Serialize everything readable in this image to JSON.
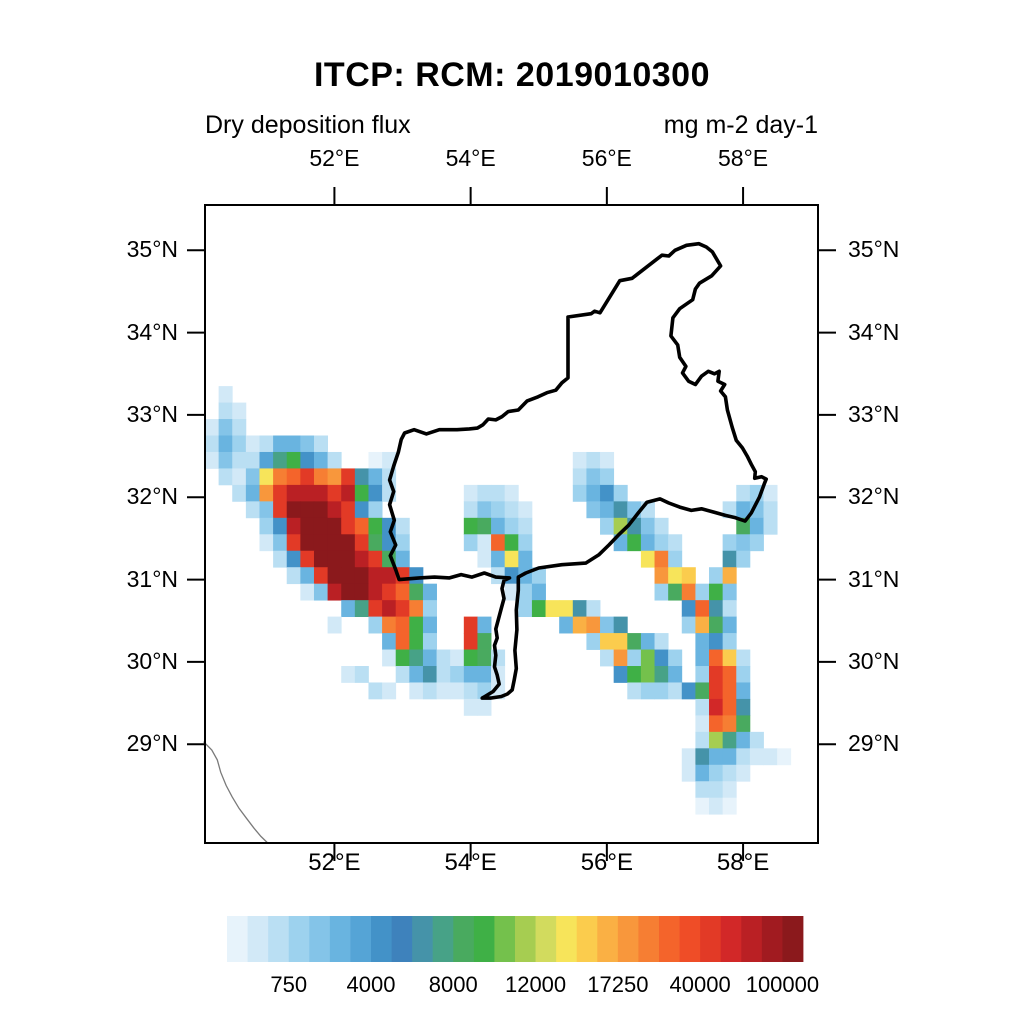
{
  "title": "ITCP: RCM: 2019010300",
  "subtitle_left": "Dry deposition flux",
  "subtitle_right": "mg m-2 day-1",
  "chart_data": {
    "type": "heatmap",
    "title": "ITCP: RCM: 2019010300",
    "variable": "Dry deposition flux",
    "units": "mg m-2 day-1",
    "map_region": "lat-lon grid with political boundary overlay",
    "lon_range": [
      50.1,
      59.1
    ],
    "lat_range": [
      27.8,
      35.55
    ],
    "x_ticks": {
      "values": [
        52,
        54,
        56,
        58
      ],
      "labels": [
        "52°E",
        "54°E",
        "56°E",
        "58°E"
      ]
    },
    "y_ticks": {
      "values": [
        35,
        34,
        33,
        32,
        31,
        30,
        29
      ],
      "labels": [
        "35°N",
        "34°N",
        "33°N",
        "32°N",
        "31°N",
        "30°N",
        "29°N"
      ]
    },
    "grid": "off",
    "legend_position": "horizontal labelbar below plot",
    "colorbar": {
      "n_segments": 28,
      "colors": [
        "#E7F3FB",
        "#D2E9F7",
        "#BADFF3",
        "#9DD2EE",
        "#84C4E8",
        "#69B4E0",
        "#55A4D6",
        "#4392C8",
        "#3E82BC",
        "#4593A9",
        "#47A287",
        "#49AA5F",
        "#3FB046",
        "#74C14C",
        "#A6CD51",
        "#D2DB5E",
        "#F7E45A",
        "#FBCC4D",
        "#FAB044",
        "#F8973C",
        "#F67E33",
        "#F4642B",
        "#EF4D27",
        "#E23A26",
        "#D22828",
        "#BA2024",
        "#A11B20",
        "#8B191C"
      ],
      "labels": [
        "750",
        "4000",
        "8000",
        "12000",
        "17250",
        "40000",
        "100000"
      ],
      "label_boundary_indices": [
        3,
        7,
        11,
        15,
        19,
        23,
        27
      ]
    },
    "raster": {
      "description": "dry deposition flux cells; each character is one 0.2 deg x 0.2 deg cell; letters index the 28 colorbar segments via palette_letters; dot = no deposition",
      "cell_size_deg": 0.2,
      "origin_lon": 50.1,
      "origin_lat": 35.55,
      "row_start": 11,
      "cols": 45,
      "rows": [
        ".b...........................................",
        ".cb..........................................",
        "bec..........................................",
        "cfdbcffec....................................",
        "beccgkmhfc..ab.............bcb...............",
        ".cbequvxutxjfc.............ced...............",
        "..cftxzzzxzmhc.....bccb....dfhd........cdb...",
        "...cexZZZzxhd......cedcb....efjec.....cfec...",
        "....dhzZZZxvmhc....mlfdc.....dojec.....lfc...",
        "....bexZZZZxlhd....dbvmd......fmfdc...ded....",
        ".....chxZZZzxlf.....bfqf........qud...jd.....",
        "......cfxZZZzzxh.....chfd........tqr.ds......",
        ".......bezZZzxvlf.....bdf........dludme......",
        "..........fkxzxud......dmqqjc......hvjc......",
        ".........b..duvmf..xf.....fstej....dslf......",
        ".............fvmd..xl.......drrlfc..fhd......",
        ".............bmkfcbmlc.......ctdnhd.fvrc.....",
        "..........bc..cfjcdffb........hmnkf.dxvd.....",
        "............cb.bcbbcdb.........cddchlxvf.....",
        "...................bb...............cyvj.....",
        "....................................bvul.....",
        "....................................cokfc....",
        "...................................bjffcbba..",
        "...................................bfdcb.....",
        "....................................ccb......",
        "....................................aba......"
      ]
    },
    "palette_letters": "abcdefghijklmnopqrstuvwxyzXZ",
    "region_outline_lonlat": [
      [
        55.43,
        34.19
      ],
      [
        55.77,
        34.23
      ],
      [
        55.82,
        34.26
      ],
      [
        55.9,
        34.24
      ],
      [
        56.19,
        34.63
      ],
      [
        56.37,
        34.66
      ],
      [
        56.73,
        34.89
      ],
      [
        56.81,
        34.94
      ],
      [
        56.91,
        34.93
      ],
      [
        57.0,
        35.0
      ],
      [
        57.17,
        35.06
      ],
      [
        57.35,
        35.08
      ],
      [
        57.46,
        35.04
      ],
      [
        57.55,
        34.98
      ],
      [
        57.67,
        34.81
      ],
      [
        57.54,
        34.69
      ],
      [
        57.36,
        34.6
      ],
      [
        57.3,
        34.53
      ],
      [
        57.26,
        34.4
      ],
      [
        57.07,
        34.29
      ],
      [
        56.97,
        34.18
      ],
      [
        56.94,
        33.96
      ],
      [
        57.04,
        33.85
      ],
      [
        57.07,
        33.7
      ],
      [
        57.16,
        33.59
      ],
      [
        57.11,
        33.51
      ],
      [
        57.2,
        33.41
      ],
      [
        57.3,
        33.37
      ],
      [
        57.39,
        33.47
      ],
      [
        57.49,
        33.53
      ],
      [
        57.58,
        33.5
      ],
      [
        57.65,
        33.53
      ],
      [
        57.63,
        33.41
      ],
      [
        57.73,
        33.37
      ],
      [
        57.67,
        33.29
      ],
      [
        57.74,
        33.22
      ],
      [
        57.77,
        33.06
      ],
      [
        57.84,
        32.85
      ],
      [
        57.9,
        32.69
      ],
      [
        57.99,
        32.6
      ],
      [
        58.06,
        32.5
      ],
      [
        58.12,
        32.4
      ],
      [
        58.18,
        32.31
      ],
      [
        58.17,
        32.23
      ],
      [
        58.27,
        32.25
      ],
      [
        58.34,
        32.22
      ],
      [
        58.31,
        32.16
      ],
      [
        58.24,
        32.0
      ],
      [
        58.12,
        31.81
      ],
      [
        58.03,
        31.71
      ],
      [
        57.89,
        31.75
      ],
      [
        57.74,
        31.78
      ],
      [
        57.57,
        31.82
      ],
      [
        57.39,
        31.86
      ],
      [
        57.24,
        31.84
      ],
      [
        57.07,
        31.88
      ],
      [
        56.91,
        31.93
      ],
      [
        56.78,
        31.98
      ],
      [
        56.59,
        31.94
      ],
      [
        56.47,
        31.82
      ],
      [
        56.32,
        31.66
      ],
      [
        56.17,
        31.54
      ],
      [
        56.03,
        31.42
      ],
      [
        55.88,
        31.3
      ],
      [
        55.69,
        31.2
      ],
      [
        55.34,
        31.18
      ],
      [
        55.0,
        31.14
      ],
      [
        54.81,
        31.08
      ],
      [
        54.7,
        31.03
      ],
      [
        54.7,
        30.87
      ],
      [
        54.67,
        30.63
      ],
      [
        54.68,
        30.39
      ],
      [
        54.65,
        30.14
      ],
      [
        54.67,
        29.92
      ],
      [
        54.64,
        29.78
      ],
      [
        54.61,
        29.66
      ],
      [
        54.54,
        29.61
      ],
      [
        54.45,
        29.58
      ],
      [
        54.29,
        29.56
      ],
      [
        54.17,
        29.56
      ],
      [
        54.21,
        29.58
      ],
      [
        54.33,
        29.64
      ],
      [
        54.42,
        29.73
      ],
      [
        54.39,
        29.84
      ],
      [
        54.35,
        29.94
      ],
      [
        54.37,
        30.08
      ],
      [
        54.35,
        30.2
      ],
      [
        54.39,
        30.29
      ],
      [
        54.37,
        30.4
      ],
      [
        54.45,
        30.65
      ],
      [
        54.49,
        30.77
      ],
      [
        54.46,
        30.89
      ],
      [
        54.49,
        30.99
      ],
      [
        54.57,
        31.02
      ],
      [
        54.37,
        31.03
      ],
      [
        54.2,
        31.08
      ],
      [
        54.02,
        31.03
      ],
      [
        53.86,
        31.06
      ],
      [
        53.69,
        31.02
      ],
      [
        53.47,
        31.03
      ],
      [
        53.25,
        31.02
      ],
      [
        52.95,
        31.0
      ],
      [
        52.9,
        31.12
      ],
      [
        52.82,
        31.29
      ],
      [
        52.9,
        31.42
      ],
      [
        52.82,
        31.58
      ],
      [
        52.88,
        31.72
      ],
      [
        52.81,
        31.91
      ],
      [
        52.87,
        32.07
      ],
      [
        52.81,
        32.21
      ],
      [
        52.87,
        32.38
      ],
      [
        52.94,
        32.55
      ],
      [
        52.98,
        32.7
      ],
      [
        53.03,
        32.78
      ],
      [
        53.17,
        32.82
      ],
      [
        53.35,
        32.77
      ],
      [
        53.54,
        32.82
      ],
      [
        53.8,
        32.82
      ],
      [
        53.98,
        32.83
      ],
      [
        54.1,
        32.84
      ],
      [
        54.18,
        32.88
      ],
      [
        54.26,
        32.95
      ],
      [
        54.37,
        32.94
      ],
      [
        54.46,
        32.98
      ],
      [
        54.55,
        33.04
      ],
      [
        54.7,
        33.06
      ],
      [
        54.83,
        33.17
      ],
      [
        54.99,
        33.22
      ],
      [
        55.12,
        33.27
      ],
      [
        55.25,
        33.3
      ],
      [
        55.34,
        33.39
      ],
      [
        55.43,
        33.45
      ],
      [
        55.43,
        34.19
      ]
    ],
    "coastline_lonlat": [
      [
        50.08,
        29.03
      ],
      [
        50.2,
        28.93
      ],
      [
        50.28,
        28.81
      ],
      [
        50.33,
        28.66
      ],
      [
        50.41,
        28.5
      ],
      [
        50.5,
        28.36
      ],
      [
        50.6,
        28.22
      ],
      [
        50.71,
        28.1
      ],
      [
        50.82,
        27.98
      ],
      [
        50.92,
        27.88
      ],
      [
        51.02,
        27.8
      ]
    ]
  }
}
